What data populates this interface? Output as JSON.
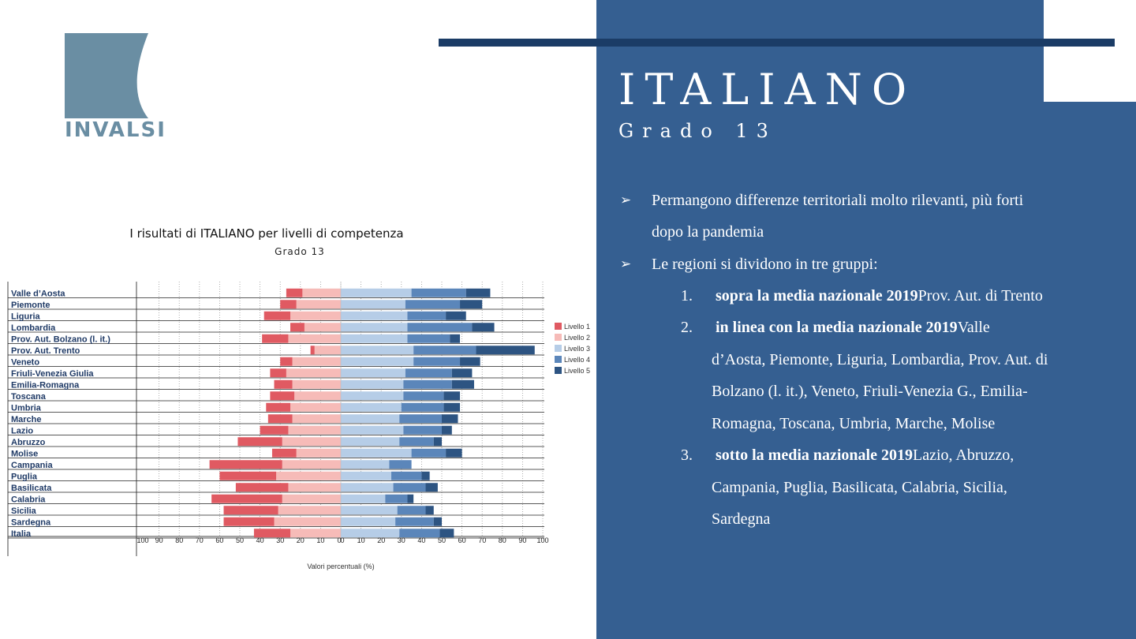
{
  "logo": {
    "text": "INVALSI"
  },
  "slide": {
    "title": "ITALIANO",
    "subtitle": "Grado 13",
    "bullets": [
      {
        "text": "Permangono differenze territoriali molto rilevanti, più forti",
        "cont": "dopo la pandemia"
      },
      {
        "text": "Le regioni si dividono in tre gruppi:"
      }
    ],
    "groups": [
      {
        "num": "1.",
        "bold": "sopra la media nazionale 2019",
        "rest": "Prov. Aut. di Trento",
        "lines": []
      },
      {
        "num": "2.",
        "bold": "in linea con la media nazionale 2019",
        "rest": "Valle",
        "lines": [
          "d’Aosta, Piemonte, Liguria, Lombardia, Prov. Aut. di",
          "Bolzano (l. it.), Veneto, Friuli-Venezia G., Emilia-",
          "Romagna, Toscana, Umbria, Marche, Molise"
        ]
      },
      {
        "num": "3.",
        "bold": "sotto la media nazionale 2019",
        "rest": "Lazio, Abruzzo,",
        "lines": [
          "Campania, Puglia, Basilicata, Calabria, Sicilia,",
          "Sardegna"
        ]
      }
    ]
  },
  "chart_data": {
    "type": "bar",
    "orientation": "horizontal-diverging",
    "title": "I risultati di ITALIANO per livelli di competenza",
    "subtitle": "Grado 13",
    "xlabel": "Valori percentuali (%)",
    "xlim": [
      -100,
      100
    ],
    "xticks": [
      "100",
      "90",
      "80",
      "70",
      "60",
      "50",
      "40",
      "30",
      "20",
      "10",
      "0",
      "0",
      "10",
      "20",
      "30",
      "40",
      "50",
      "60",
      "70",
      "80",
      "90",
      "100"
    ],
    "legend_position": "right",
    "colors": [
      "#e05a62",
      "#f6bbb8",
      "#b6cde7",
      "#5b86ba",
      "#2d5482"
    ],
    "categories": [
      "Valle d’Aosta",
      "Piemonte",
      "Liguria",
      "Lombardia",
      "Prov. Aut. Bolzano (l. it.)",
      "Prov. Aut. Trento",
      "Veneto",
      "Friuli-Venezia Giulia",
      "Emilia-Romagna",
      "Toscana",
      "Umbria",
      "Marche",
      "Lazio",
      "Abruzzo",
      "Molise",
      "Campania",
      "Puglia",
      "Basilicata",
      "Calabria",
      "Sicilia",
      "Sardegna",
      "Italia"
    ],
    "series": [
      {
        "name": "Livello 1",
        "side": "left",
        "values": [
          8,
          8,
          13,
          7,
          13,
          2,
          6,
          8,
          9,
          12,
          12,
          12,
          14,
          22,
          12,
          36,
          28,
          26,
          35,
          27,
          25,
          18
        ]
      },
      {
        "name": "Livello 2",
        "side": "left",
        "values": [
          19,
          22,
          25,
          18,
          26,
          13,
          24,
          27,
          24,
          23,
          25,
          24,
          26,
          29,
          22,
          29,
          32,
          26,
          29,
          31,
          33,
          25
        ]
      },
      {
        "name": "Livello 3",
        "side": "right",
        "values": [
          35,
          32,
          33,
          33,
          33,
          36,
          36,
          32,
          31,
          31,
          30,
          29,
          31,
          29,
          35,
          24,
          25,
          26,
          22,
          28,
          27,
          29
        ]
      },
      {
        "name": "Livello 4",
        "side": "right",
        "values": [
          27,
          27,
          19,
          32,
          21,
          31,
          23,
          23,
          24,
          20,
          21,
          21,
          19,
          17,
          17,
          11,
          15,
          16,
          11,
          14,
          19,
          20
        ]
      },
      {
        "name": "Livello 5",
        "side": "right",
        "values": [
          12,
          11,
          10,
          11,
          5,
          29,
          10,
          10,
          11,
          8,
          8,
          8,
          5,
          4,
          8,
          0,
          4,
          6,
          3,
          4,
          4,
          7
        ]
      }
    ]
  }
}
